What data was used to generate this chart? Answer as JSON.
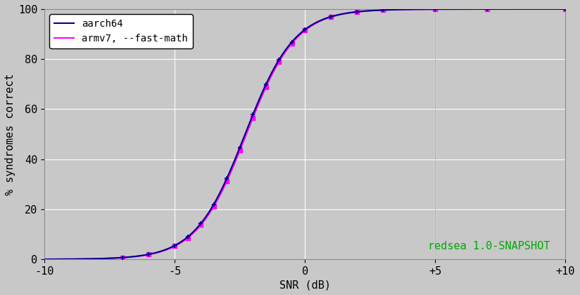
{
  "title": "",
  "xlabel": "SNR (dB)",
  "ylabel": "% syndromes correct",
  "watermark": "redsea 1.0-SNAPSHOT",
  "watermark_color": "#00aa00",
  "xlim": [
    -10,
    10
  ],
  "ylim": [
    0,
    100
  ],
  "xticks": [
    -10,
    -5,
    0,
    5,
    10
  ],
  "xticklabels": [
    "-10",
    "-5",
    "0",
    "+5",
    "+10"
  ],
  "yticks": [
    0,
    20,
    40,
    60,
    80,
    100
  ],
  "background_color": "#c8c8c8",
  "plot_bg_color": "#c8c8c8",
  "grid_color": "#ffffff",
  "series": [
    {
      "label": "aarch64",
      "color": "#00008b",
      "linewidth": 1.5,
      "marker": "+",
      "markersize": 5,
      "markeredgewidth": 1.3,
      "zorder": 3
    },
    {
      "label": "armv7, --fast-math",
      "color": "#ff00ff",
      "linewidth": 1.5,
      "marker": "s",
      "markersize": 4,
      "zorder": 2
    }
  ],
  "sigmoid_mean": -2.3,
  "sigmoid_scale": 0.95,
  "marker_snr": [
    -7.0,
    -6.0,
    -5.0,
    -4.5,
    -4.0,
    -3.5,
    -3.0,
    -2.5,
    -2.0,
    -1.5,
    -1.0,
    -0.5,
    0.0,
    1.0,
    2.0,
    3.0,
    5.0,
    7.0,
    10.0
  ]
}
